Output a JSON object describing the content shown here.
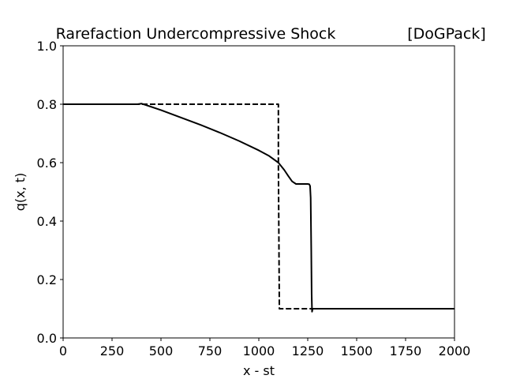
{
  "chart_data": {
    "type": "line",
    "title": "Rarefaction Undercompressive Shock",
    "title_right": "[DoGPack]",
    "xlabel": "x - st",
    "ylabel": "q(x, t)",
    "xlim": [
      0,
      2000
    ],
    "ylim": [
      0.0,
      1.0
    ],
    "grid": false,
    "legend": "none",
    "x_ticks": [
      0,
      250,
      500,
      750,
      1000,
      1250,
      1500,
      1750,
      2000
    ],
    "x_tick_labels": [
      "0",
      "250",
      "500",
      "750",
      "1000",
      "1250",
      "1500",
      "1750",
      "2000"
    ],
    "y_ticks": [
      0.0,
      0.2,
      0.4,
      0.6,
      0.8,
      1.0
    ],
    "y_tick_labels": [
      "0.0",
      "0.2",
      "0.4",
      "0.6",
      "0.8",
      "1.0"
    ],
    "series": [
      {
        "style": "dashed",
        "color": "#000000",
        "x": [
          0,
          1100,
          1100,
          1105,
          2000
        ],
        "y": [
          0.8,
          0.8,
          0.6,
          0.1,
          0.1
        ]
      },
      {
        "style": "solid",
        "color": "#000000",
        "x": [
          0,
          380,
          400,
          420,
          500,
          600,
          700,
          800,
          900,
          1000,
          1050,
          1100,
          1130,
          1150,
          1170,
          1190,
          1220,
          1250,
          1258,
          1262,
          1265,
          1268,
          1270,
          1272,
          1275,
          1280,
          1300,
          1400,
          1500,
          1750,
          2000
        ],
        "y": [
          0.8,
          0.8,
          0.802,
          0.798,
          0.78,
          0.755,
          0.73,
          0.703,
          0.674,
          0.642,
          0.624,
          0.6,
          0.575,
          0.555,
          0.536,
          0.527,
          0.527,
          0.527,
          0.526,
          0.52,
          0.48,
          0.3,
          0.15,
          0.09,
          0.1,
          0.1,
          0.1,
          0.1,
          0.1,
          0.1,
          0.1
        ]
      }
    ]
  }
}
